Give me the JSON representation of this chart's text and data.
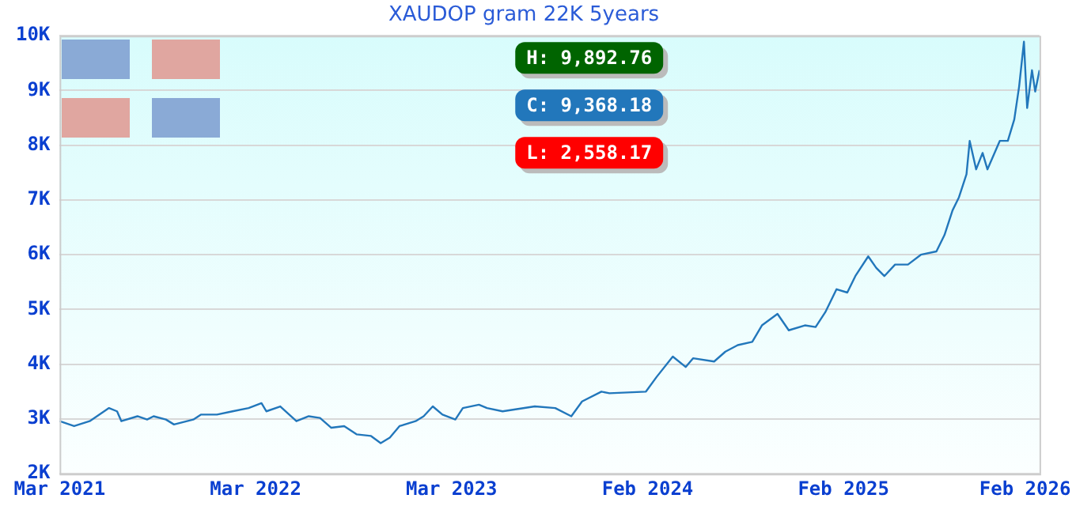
{
  "chart_data": {
    "type": "line",
    "title": "XAUDOP gram 22K 5years",
    "x": [
      "2021-03-01",
      "2021-03-28",
      "2021-04-26",
      "2021-06-01",
      "2021-06-16",
      "2021-06-24",
      "2021-07-24",
      "2021-08-11",
      "2021-08-23",
      "2021-09-15",
      "2021-09-30",
      "2021-11-05",
      "2021-11-19",
      "2021-12-19",
      "2022-01-17",
      "2022-02-16",
      "2022-03-12",
      "2022-03-21",
      "2022-04-16",
      "2022-05-16",
      "2022-06-08",
      "2022-06-29",
      "2022-07-20",
      "2022-08-13",
      "2022-09-05",
      "2022-10-02",
      "2022-10-20",
      "2022-11-06",
      "2022-11-24",
      "2022-12-24",
      "2023-01-08",
      "2023-01-25",
      "2023-02-12",
      "2023-03-08",
      "2023-03-22",
      "2023-04-21",
      "2023-05-06",
      "2023-06-04",
      "2023-08-03",
      "2023-09-10",
      "2023-10-10",
      "2023-10-30",
      "2023-12-05",
      "2023-12-20",
      "2024-02-26",
      "2024-03-17",
      "2024-04-16",
      "2024-05-10",
      "2024-05-24",
      "2024-07-02",
      "2024-07-23",
      "2024-08-15",
      "2024-09-11",
      "2024-09-29",
      "2024-10-28",
      "2024-11-18",
      "2024-12-18",
      "2025-01-07",
      "2025-01-25",
      "2025-02-15",
      "2025-03-07",
      "2025-03-22",
      "2025-04-15",
      "2025-04-30",
      "2025-05-15",
      "2025-06-04",
      "2025-06-28",
      "2025-07-22",
      "2025-08-20",
      "2025-09-04",
      "2025-09-19",
      "2025-10-01",
      "2025-10-15",
      "2025-10-21",
      "2025-11-02",
      "2025-11-14",
      "2025-11-23",
      "2025-12-16",
      "2025-12-31",
      "2026-01-12",
      "2026-01-21",
      "2026-01-30",
      "2026-02-05",
      "2026-02-14",
      "2026-02-20",
      "2026-02-28"
    ],
    "series": [
      {
        "color": "#2277bb",
        "values": [
          2960,
          2870,
          2960,
          3200,
          3140,
          2960,
          3050,
          2990,
          3050,
          2990,
          2900,
          2990,
          3080,
          3080,
          3140,
          3200,
          3290,
          3140,
          3230,
          2960,
          3050,
          3020,
          2840,
          2870,
          2720,
          2690,
          2560,
          2660,
          2870,
          2960,
          3050,
          3230,
          3080,
          2990,
          3200,
          3260,
          3200,
          3140,
          3230,
          3200,
          3050,
          3320,
          3500,
          3470,
          3500,
          3770,
          4140,
          3950,
          4110,
          4050,
          4230,
          4350,
          4410,
          4710,
          4920,
          4620,
          4710,
          4680,
          4950,
          5370,
          5310,
          5610,
          5970,
          5760,
          5610,
          5820,
          5820,
          6000,
          6060,
          6360,
          6810,
          7050,
          7470,
          8080,
          7560,
          7860,
          7560,
          8080,
          8080,
          8470,
          9070,
          9890,
          8680,
          9370,
          8980,
          9370
        ]
      }
    ],
    "xlim": [
      "2021-03-01",
      "2026-02-28"
    ],
    "xticks": [
      {
        "value": "2021-03-01",
        "label": "Mar 2021"
      },
      {
        "value": "2022-03-01",
        "label": "Mar 2022"
      },
      {
        "value": "2023-03-01",
        "label": "Mar 2023"
      },
      {
        "value": "2024-02-29",
        "label": "Feb 2024"
      },
      {
        "value": "2025-02-28",
        "label": "Feb 2025"
      },
      {
        "value": "2026-02-01",
        "label": "Feb 2026"
      }
    ],
    "ylim": [
      2000,
      10000
    ],
    "yticks": [
      {
        "value": 2000,
        "label": "2K"
      },
      {
        "value": 3000,
        "label": "3K"
      },
      {
        "value": 4000,
        "label": "4K"
      },
      {
        "value": 5000,
        "label": "5K"
      },
      {
        "value": 6000,
        "label": "6K"
      },
      {
        "value": 7000,
        "label": "7K"
      },
      {
        "value": 8000,
        "label": "8K"
      },
      {
        "value": 9000,
        "label": "9K"
      },
      {
        "value": 10000,
        "label": "10K"
      }
    ],
    "grid": "y",
    "annotations": [
      "H: 9,892.76",
      "C: 9,368.18",
      "L: 2,558.17"
    ]
  }
}
